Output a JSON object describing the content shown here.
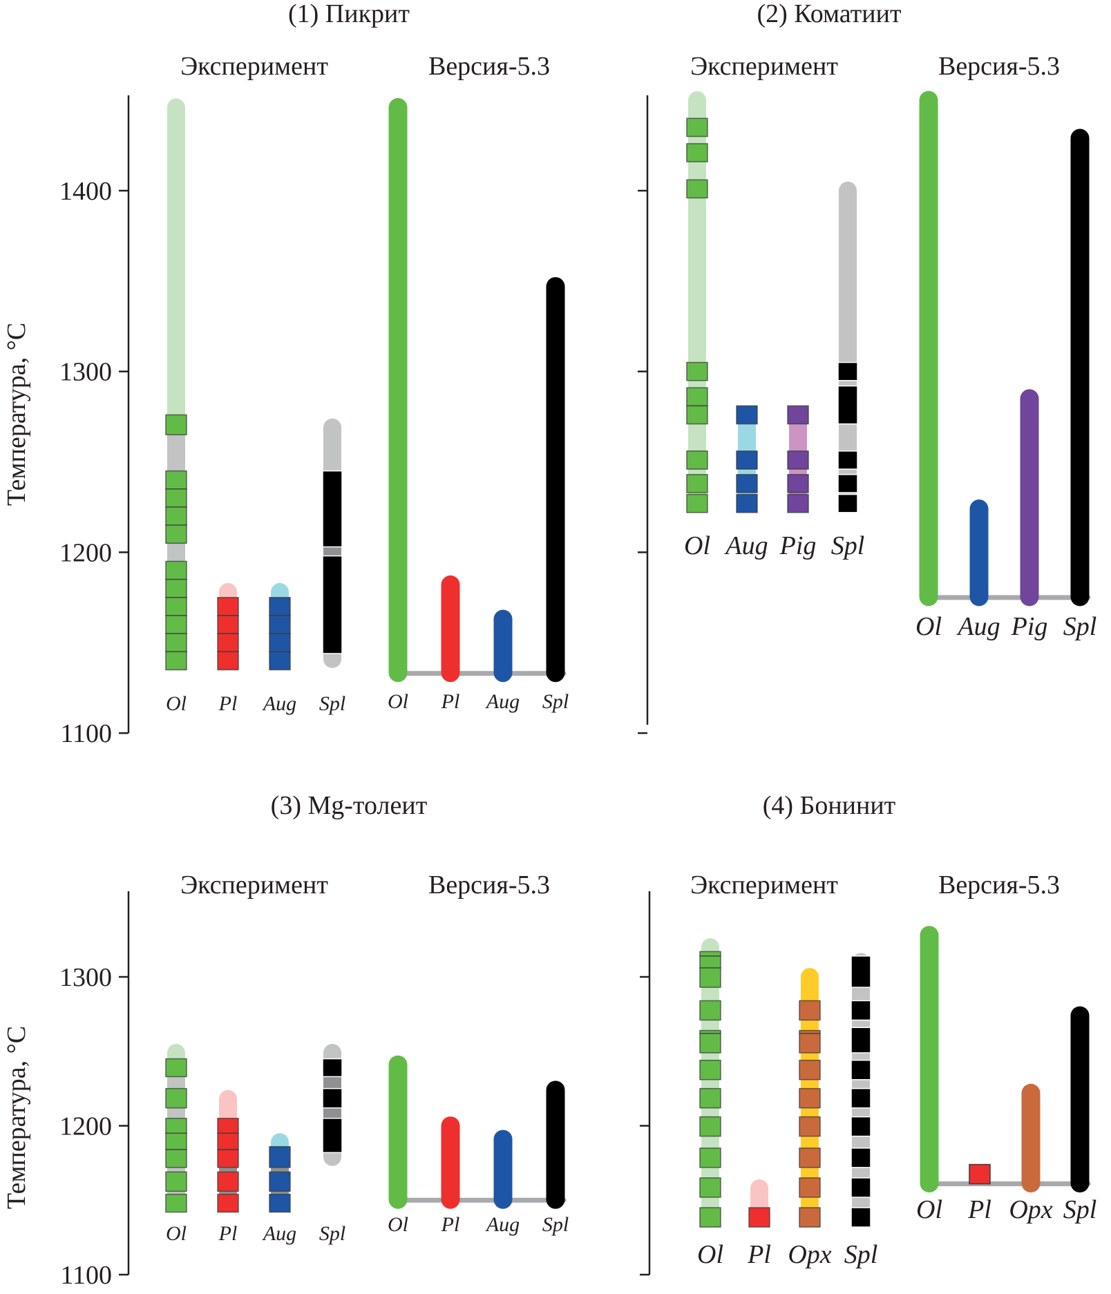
{
  "chart_data": {
    "type": "bar",
    "description": "Crystallization temperature ranges of minerals: experiment vs model (Версия-5.3)",
    "ylabel": "Температура, °C",
    "colors": {
      "Ol": "#62bb46",
      "Ol_light": "#c5e3c1",
      "Pl": "#ee2f2d",
      "Pl_light": "#f9c4c3",
      "Aug": "#1f55a5",
      "Aug_light": "#9ad9e3",
      "Pig": "#70459b",
      "Pig_light": "#cc94c3",
      "Opx": "#c96a3c",
      "Opx_light": "#ffcb29",
      "Spl": "#000000",
      "Spl_light": "#c2c3c3",
      "Spl_mid": "#8e9091",
      "baseline": "#a7a9ab"
    },
    "panels": [
      {
        "title": "(1) Пикрит",
        "experiment_label": "Эксперимент",
        "model_label": "Версия-5.3",
        "ylim": [
          1100,
          1455
        ],
        "yticks": [
          1100,
          1200,
          1300,
          1400
        ],
        "show_ylabel": true,
        "show_tick_labels": true,
        "experiment": [
          {
            "mineral": "Ol",
            "range": [
              1135,
              1451
            ],
            "light": "Ol_light",
            "fill": "Ol",
            "gaps": [
              {
                "range": [
                  1195,
                  1205
                ],
                "color": "Spl_light"
              },
              {
                "range": [
                  1245,
                  1265
                ],
                "color": "Spl_light"
              }
            ],
            "blocks": [
              [
                1265,
                1276
              ],
              [
                1235,
                1245
              ],
              [
                1225,
                1235
              ],
              [
                1215,
                1225
              ],
              [
                1205,
                1215
              ],
              [
                1185,
                1195
              ],
              [
                1175,
                1185
              ],
              [
                1165,
                1175
              ],
              [
                1155,
                1165
              ],
              [
                1145,
                1155
              ],
              [
                1135,
                1145
              ]
            ]
          },
          {
            "mineral": "Pl",
            "range": [
              1135,
              1183
            ],
            "light": "Pl_light",
            "fill": "Pl",
            "blocks": [
              [
                1165,
                1175
              ],
              [
                1155,
                1165
              ],
              [
                1145,
                1155
              ],
              [
                1135,
                1145
              ]
            ]
          },
          {
            "mineral": "Aug",
            "range": [
              1135,
              1183
            ],
            "light": "Aug_light",
            "fill": "Aug",
            "blocks": [
              [
                1165,
                1175
              ],
              [
                1155,
                1165
              ],
              [
                1145,
                1155
              ],
              [
                1135,
                1145
              ]
            ]
          },
          {
            "mineral": "Spl",
            "range": [
              1136,
              1274
            ],
            "light": "Spl_light",
            "fill": "Spl",
            "spinel": true,
            "gaps": [
              {
                "range": [
                  1198,
                  1203
                ],
                "color": "Spl_mid"
              }
            ],
            "blocks": [
              [
                1203,
                1245
              ],
              [
                1144,
                1198
              ]
            ]
          }
        ],
        "model": {
          "baseline": 1133,
          "bars": [
            {
              "mineral": "Ol",
              "top": 1451,
              "color": "Ol"
            },
            {
              "mineral": "Pl",
              "top": 1187,
              "color": "Pl"
            },
            {
              "mineral": "Aug",
              "top": 1168,
              "color": "Aug"
            },
            {
              "mineral": "Spl",
              "top": 1352,
              "color": "Spl"
            }
          ]
        }
      },
      {
        "title": "(2) Коматиит",
        "experiment_label": "Эксперимент",
        "model_label": "Версия-5.3",
        "ylim": [
          1100,
          1455
        ],
        "yticks": [
          1100,
          1200,
          1300,
          1400
        ],
        "show_ylabel": false,
        "show_tick_labels": false,
        "experiment": [
          {
            "mineral": "Ol",
            "range": [
              1222,
              1455
            ],
            "light": "Ol_light",
            "fill": "Ol",
            "blocks": [
              [
                1430,
                1440
              ],
              [
                1416,
                1426
              ],
              [
                1396,
                1406
              ],
              [
                1295,
                1305
              ],
              [
                1281,
                1291
              ],
              [
                1271,
                1281
              ],
              [
                1246,
                1256
              ],
              [
                1233,
                1243
              ],
              [
                1222,
                1232
              ]
            ]
          },
          {
            "mineral": "Aug",
            "range": [
              1222,
              1281
            ],
            "light": "Aug_light",
            "fill": "Aug",
            "square_top": true,
            "blocks": [
              [
                1271,
                1281
              ],
              [
                1246,
                1256
              ],
              [
                1233,
                1243
              ],
              [
                1222,
                1232
              ]
            ]
          },
          {
            "mineral": "Pig",
            "range": [
              1222,
              1281
            ],
            "light": "Pig_light",
            "fill": "Pig",
            "square_top": true,
            "blocks": [
              [
                1271,
                1281
              ],
              [
                1246,
                1256
              ],
              [
                1233,
                1243
              ],
              [
                1222,
                1232
              ]
            ]
          },
          {
            "mineral": "Spl",
            "range": [
              1222,
              1405
            ],
            "light": "Spl_light",
            "fill": "Spl",
            "spinel": true,
            "blocks": [
              [
                1295,
                1305
              ],
              [
                1271,
                1292
              ],
              [
                1246,
                1256
              ],
              [
                1233,
                1243
              ],
              [
                1222,
                1232
              ]
            ]
          }
        ],
        "model": {
          "baseline": 1175,
          "bars": [
            {
              "mineral": "Ol",
              "top": 1455,
              "color": "Ol"
            },
            {
              "mineral": "Aug",
              "top": 1229,
              "color": "Aug"
            },
            {
              "mineral": "Pig",
              "top": 1290,
              "color": "Pig"
            },
            {
              "mineral": "Spl",
              "top": 1434,
              "color": "Spl"
            }
          ]
        }
      },
      {
        "title": "(3) Mg-толеит",
        "experiment_label": "Эксперимент",
        "model_label": "Версия-5.3",
        "ylim": [
          1100,
          1348
        ],
        "yticks": [
          1100,
          1200,
          1300
        ],
        "show_ylabel": true,
        "show_tick_labels": true,
        "experiment": [
          {
            "mineral": "Ol",
            "range": [
              1142,
              1255
            ],
            "light": "Ol_light",
            "fill": "Ol",
            "gaps": [
              {
                "range": [
                  1225,
                  1233
                ],
                "color": "Spl_light"
              },
              {
                "range": [
                  1205,
                  1212
                ],
                "color": "Spl_light"
              },
              {
                "range": [
                  1169,
                  1172
                ],
                "color": "Spl_light"
              },
              {
                "range": [
                  1154,
                  1156
                ],
                "color": "Spl_light"
              }
            ],
            "blocks": [
              [
                1233,
                1245
              ],
              [
                1212,
                1225
              ],
              [
                1195,
                1205
              ],
              [
                1184,
                1195
              ],
              [
                1172,
                1184
              ],
              [
                1156,
                1169
              ],
              [
                1142,
                1154
              ]
            ]
          },
          {
            "mineral": "Pl",
            "range": [
              1142,
              1224
            ],
            "light": "Pl_light",
            "fill": "Pl",
            "gaps": [
              {
                "range": [
                  1169,
                  1172
                ],
                "color": "Spl_mid"
              },
              {
                "range": [
                  1154,
                  1156
                ],
                "color": "Spl_mid"
              }
            ],
            "blocks": [
              [
                1195,
                1205
              ],
              [
                1184,
                1195
              ],
              [
                1172,
                1184
              ],
              [
                1156,
                1169
              ],
              [
                1142,
                1154
              ]
            ]
          },
          {
            "mineral": "Aug",
            "range": [
              1142,
              1195
            ],
            "light": "Aug_light",
            "fill": "Aug",
            "gaps": [
              {
                "range": [
                  1169,
                  1172
                ],
                "color": "Spl_mid"
              },
              {
                "range": [
                  1154,
                  1156
                ],
                "color": "Spl_mid"
              }
            ],
            "blocks": [
              [
                1172,
                1186
              ],
              [
                1156,
                1169
              ],
              [
                1142,
                1154
              ]
            ]
          },
          {
            "mineral": "Spl",
            "range": [
              1173,
              1255
            ],
            "light": "Spl_light",
            "fill": "Spl",
            "spinel": true,
            "gaps": [
              {
                "range": [
                  1225,
                  1233
                ],
                "color": "Spl_mid"
              },
              {
                "range": [
                  1205,
                  1212
                ],
                "color": "Spl_mid"
              }
            ],
            "blocks": [
              [
                1233,
                1245
              ],
              [
                1212,
                1225
              ],
              [
                1182,
                1205
              ]
            ]
          }
        ],
        "model": {
          "baseline": 1150,
          "bars": [
            {
              "mineral": "Ol",
              "top": 1247,
              "color": "Ol"
            },
            {
              "mineral": "Pl",
              "top": 1206,
              "color": "Pl"
            },
            {
              "mineral": "Aug",
              "top": 1197,
              "color": "Aug"
            },
            {
              "mineral": "Spl",
              "top": 1230,
              "color": "Spl"
            }
          ]
        }
      },
      {
        "title": "(4) Бонинит",
        "experiment_label": "Эксперимент",
        "model_label": "Версия-5.3",
        "ylim": [
          1100,
          1348
        ],
        "yticks": [
          1100,
          1200,
          1300
        ],
        "show_ylabel": false,
        "show_tick_labels": false,
        "experiment": [
          {
            "mineral": "Ol",
            "range": [
              1132,
              1326
            ],
            "light": "Ol_light",
            "fill": "Ol",
            "blocks": [
              [
                1314,
                1317
              ],
              [
                1306,
                1314
              ],
              [
                1293,
                1306
              ],
              [
                1271,
                1284
              ],
              [
                1262,
                1264
              ],
              [
                1249,
                1262
              ],
              [
                1231,
                1244
              ],
              [
                1212,
                1225
              ],
              [
                1193,
                1206
              ],
              [
                1172,
                1185
              ],
              [
                1152,
                1165
              ],
              [
                1132,
                1145
              ]
            ]
          },
          {
            "mineral": "Pl",
            "range": [
              1132,
              1164
            ],
            "light": "Pl_light",
            "fill": "Pl",
            "blocks": [
              [
                1132,
                1145
              ]
            ]
          },
          {
            "mineral": "Opx",
            "range": [
              1132,
              1306
            ],
            "light": "Opx_light",
            "fill": "Opx",
            "blocks": [
              [
                1271,
                1284
              ],
              [
                1262,
                1264
              ],
              [
                1249,
                1262
              ],
              [
                1231,
                1244
              ],
              [
                1212,
                1225
              ],
              [
                1193,
                1206
              ],
              [
                1172,
                1185
              ],
              [
                1152,
                1165
              ],
              [
                1132,
                1145
              ]
            ]
          },
          {
            "mineral": "Spl",
            "range": [
              1132,
              1316
            ],
            "light": "Spl_light",
            "fill": "Spl",
            "spinel": true,
            "blocks": [
              [
                1293,
                1314
              ],
              [
                1271,
                1284
              ],
              [
                1249,
                1266
              ],
              [
                1231,
                1244
              ],
              [
                1212,
                1225
              ],
              [
                1193,
                1206
              ],
              [
                1172,
                1185
              ],
              [
                1152,
                1165
              ],
              [
                1132,
                1145
              ]
            ]
          }
        ],
        "model": {
          "baseline": 1161,
          "bars": [
            {
              "mineral": "Ol",
              "top": 1334,
              "color": "Ol"
            },
            {
              "mineral": "Pl",
              "top": 1174,
              "color": "Pl",
              "square": true
            },
            {
              "mineral": "Opx",
              "top": 1228,
              "color": "Opx"
            },
            {
              "mineral": "Spl",
              "top": 1280,
              "color": "Spl"
            }
          ]
        }
      }
    ]
  }
}
